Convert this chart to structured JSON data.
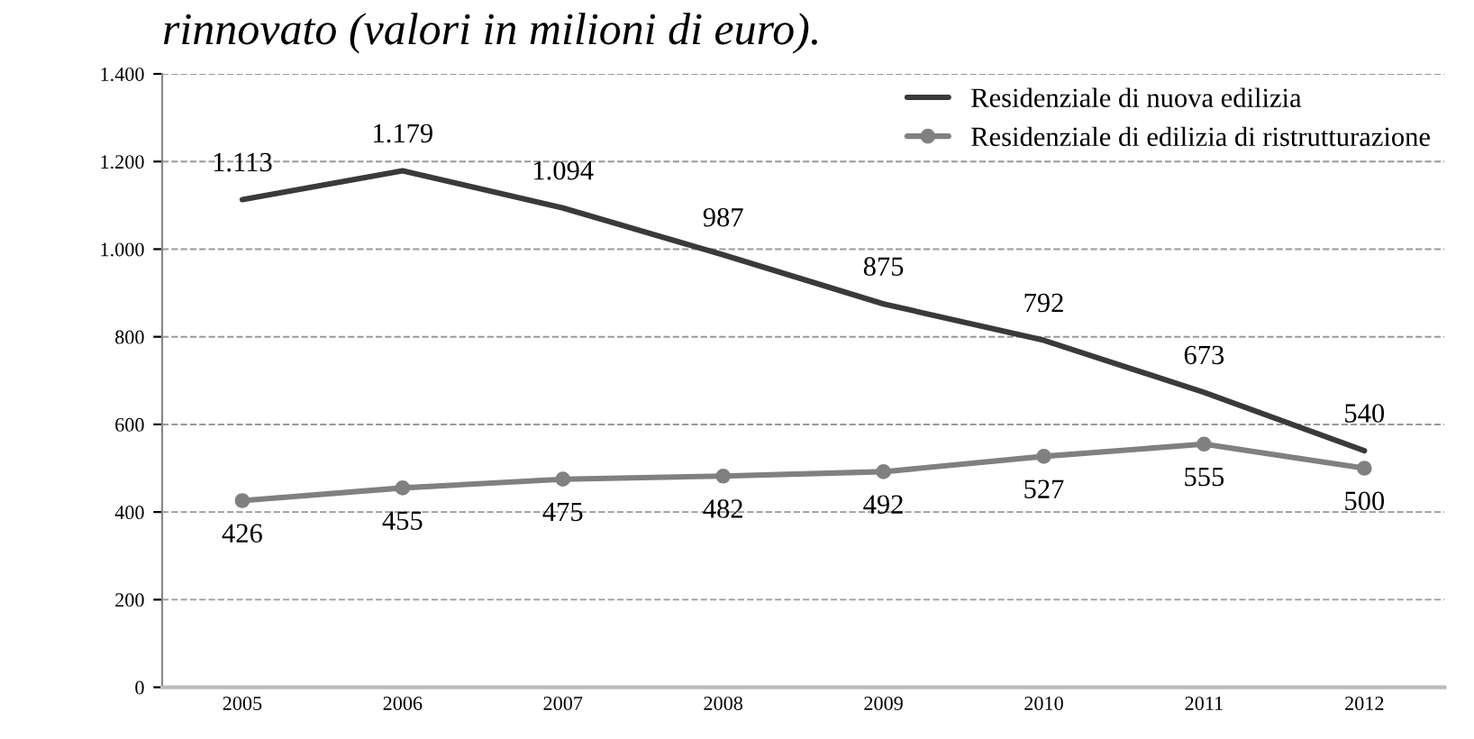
{
  "chart_data": {
    "type": "line",
    "title": "rinnovato (valori in milioni di euro).",
    "categories": [
      "2005",
      "2006",
      "2007",
      "2008",
      "2009",
      "2010",
      "2011",
      "2012"
    ],
    "series": [
      {
        "name": "Residenziale di nuova edilizia",
        "color": "#3a3a3a",
        "marker": "none",
        "values": [
          1113,
          1179,
          1094,
          987,
          875,
          792,
          673,
          540
        ],
        "value_labels": [
          "1.113",
          "1.179",
          "1.094",
          "987",
          "875",
          "792",
          "673",
          "540"
        ]
      },
      {
        "name": "Residenziale di edilizia di ristrutturazione",
        "color": "#808080",
        "marker": "circle",
        "values": [
          426,
          455,
          475,
          482,
          492,
          527,
          555,
          500
        ],
        "value_labels": [
          "426",
          "455",
          "475",
          "482",
          "492",
          "527",
          "555",
          "500"
        ]
      }
    ],
    "ylim": [
      0,
      1400
    ],
    "yticks": [
      {
        "value": 0,
        "label": "0"
      },
      {
        "value": 200,
        "label": "200"
      },
      {
        "value": 400,
        "label": "400"
      },
      {
        "value": 600,
        "label": "600"
      },
      {
        "value": 800,
        "label": "800"
      },
      {
        "value": 1000,
        "label": "1.000"
      },
      {
        "value": 1200,
        "label": "1.200"
      },
      {
        "value": 1400,
        "label": "1.400"
      }
    ],
    "grid": "y",
    "legend": "top right",
    "line_style": "solid"
  }
}
